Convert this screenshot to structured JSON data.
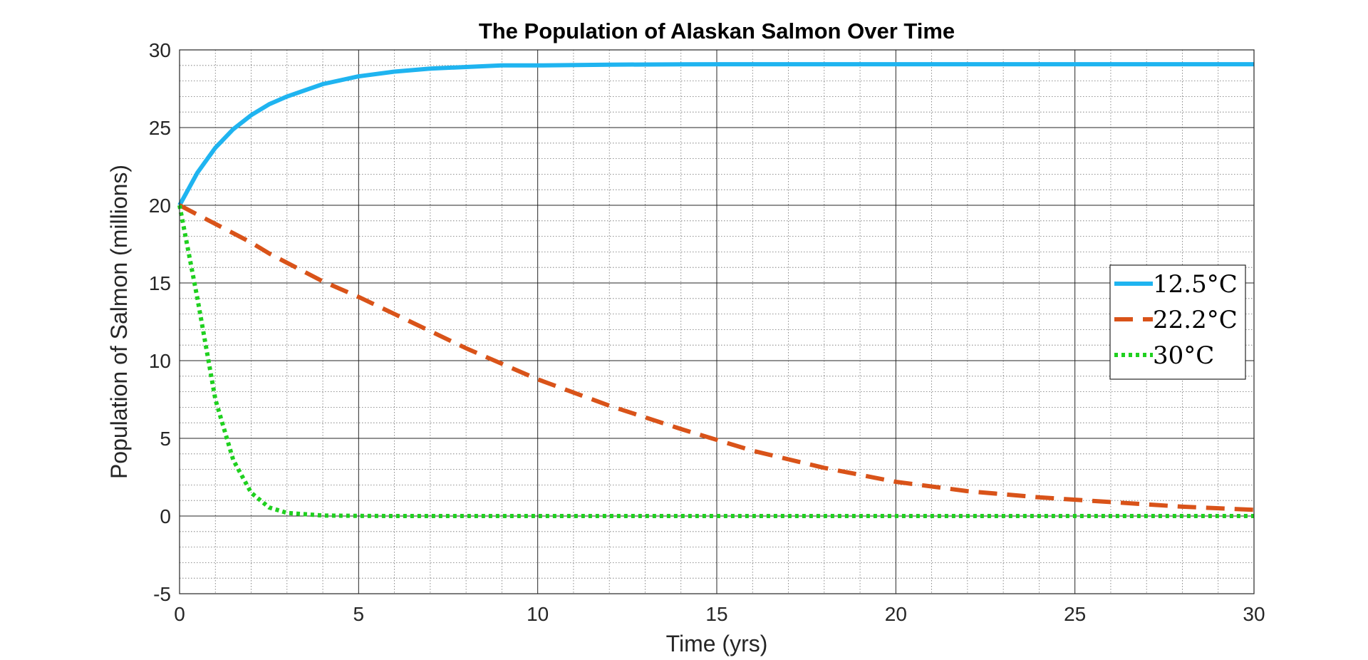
{
  "chart_data": {
    "type": "line",
    "title": "The Population of Alaskan Salmon Over Time",
    "xlabel": "Time (yrs)",
    "ylabel": "Population of Salmon (millions)",
    "xlim": [
      0,
      30
    ],
    "ylim": [
      -5,
      30
    ],
    "xticks": [
      0,
      5,
      10,
      15,
      20,
      25,
      30
    ],
    "yticks": [
      -5,
      0,
      5,
      10,
      15,
      20,
      25,
      30
    ],
    "grid": "major and minor",
    "legend_location": "right",
    "x": [
      0,
      0.5,
      1,
      1.5,
      2,
      2.5,
      3,
      4,
      5,
      6,
      7,
      8,
      9,
      10,
      12,
      14,
      16,
      18,
      20,
      22,
      24,
      26,
      28,
      30
    ],
    "series": [
      {
        "name": "12.5°C",
        "color": "#1fb4f0",
        "style": "solid",
        "values": [
          20,
          22.1,
          23.7,
          24.9,
          25.8,
          26.5,
          27.0,
          27.8,
          28.3,
          28.6,
          28.8,
          28.9,
          29.0,
          29.0,
          29.05,
          29.07,
          29.08,
          29.08,
          29.08,
          29.08,
          29.08,
          29.08,
          29.08,
          29.08
        ]
      },
      {
        "name": "22.2°C",
        "color": "#d95319",
        "style": "dashed",
        "values": [
          20,
          19.4,
          18.8,
          18.2,
          17.6,
          16.9,
          16.3,
          15.1,
          14.1,
          13.0,
          11.9,
          10.8,
          9.8,
          8.8,
          7.1,
          5.6,
          4.2,
          3.1,
          2.2,
          1.6,
          1.2,
          0.9,
          0.6,
          0.4
        ]
      },
      {
        "name": "30°C",
        "color": "#1fd01f",
        "style": "dotted",
        "values": [
          20,
          14.0,
          7.5,
          3.6,
          1.5,
          0.55,
          0.2,
          0.03,
          0.01,
          0,
          0,
          0,
          0,
          0,
          0,
          0,
          0,
          0,
          0,
          0,
          0,
          0,
          0,
          0
        ]
      }
    ]
  }
}
